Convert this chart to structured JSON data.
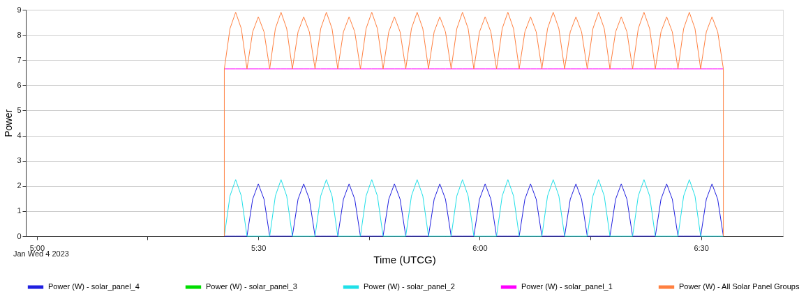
{
  "chart_data": {
    "type": "line",
    "xlabel": "Time (UTCG)",
    "ylabel": "Power",
    "annotations": [
      "Jan Wed 4 2023"
    ],
    "xlim": [
      4.975,
      6.685
    ],
    "ylim": [
      0,
      9
    ],
    "xticks": [
      {
        "value": 5,
        "label": "5:00"
      },
      {
        "value": 5.25,
        "label": null
      },
      {
        "value": 5.5,
        "label": "5:30"
      },
      {
        "value": 5.75,
        "label": null
      },
      {
        "value": 6,
        "label": "6:00"
      },
      {
        "value": 6.25,
        "label": null
      },
      {
        "value": 6.5,
        "label": "6:30"
      }
    ],
    "yticks": [
      0,
      1,
      2,
      3,
      4,
      5,
      6,
      7,
      8,
      9
    ],
    "grid": "y",
    "legend": "bottom",
    "line_style": "solid",
    "marker": "none",
    "x": [
      5.4233,
      5.4233,
      5.4361,
      5.4489,
      5.4617,
      5.4745,
      5.4873,
      5.5001,
      5.513,
      5.5258,
      5.5386,
      5.5514,
      5.5642,
      5.577,
      5.5898,
      5.6026,
      5.6154,
      5.6282,
      5.641,
      5.6538,
      5.6666,
      5.6795,
      5.6923,
      5.7051,
      5.7179,
      5.7307,
      5.7435,
      5.7563,
      5.7691,
      5.7819,
      5.7947,
      5.8075,
      5.8203,
      5.8331,
      5.8459,
      5.8588,
      5.8716,
      5.8844,
      5.8972,
      5.91,
      5.9228,
      5.9356,
      5.9484,
      5.9612,
      5.974,
      5.9868,
      5.9996,
      6.0124,
      6.0253,
      6.0381,
      6.0509,
      6.0637,
      6.0765,
      6.0893,
      6.1021,
      6.1149,
      6.1277,
      6.1405,
      6.1533,
      6.1661,
      6.1789,
      6.1918,
      6.2046,
      6.2174,
      6.2302,
      6.243,
      6.2558,
      6.2686,
      6.2814,
      6.2942,
      6.307,
      6.3198,
      6.3326,
      6.3454,
      6.3582,
      6.3711,
      6.3839,
      6.3967,
      6.4095,
      6.4223,
      6.4351,
      6.4479,
      6.4607,
      6.4735,
      6.4863,
      6.4991,
      6.5119,
      6.5247,
      6.5376,
      6.5504,
      6.5504
    ],
    "series": [
      {
        "name": "Power (W) - solar_panel_4",
        "color": "#2020e0",
        "values": [
          0,
          0,
          0,
          0,
          0,
          0,
          1.47,
          2.08,
          1.47,
          0,
          0,
          0,
          0,
          0,
          1.47,
          2.08,
          1.47,
          0,
          0,
          0,
          0,
          0,
          1.47,
          2.08,
          1.47,
          0,
          0,
          0,
          0,
          0,
          1.47,
          2.08,
          1.47,
          0,
          0,
          0,
          0,
          0,
          1.47,
          2.08,
          1.47,
          0,
          0,
          0,
          0,
          0,
          1.47,
          2.08,
          1.47,
          0,
          0,
          0,
          0,
          0,
          1.47,
          2.08,
          1.47,
          0,
          0,
          0,
          0,
          0,
          1.47,
          2.08,
          1.47,
          0,
          0,
          0,
          0,
          0,
          1.47,
          2.08,
          1.47,
          0,
          0,
          0,
          0,
          0,
          1.47,
          2.08,
          1.47,
          0,
          0,
          0,
          0,
          0,
          1.47,
          2.08,
          1.47,
          0,
          0
        ]
      },
      {
        "name": "Power (W) - solar_panel_3",
        "color": "#00dd00",
        "values": [
          null,
          null,
          null,
          null,
          null,
          null,
          null,
          null,
          null,
          null,
          null,
          null,
          null,
          null,
          null,
          null,
          null,
          null,
          null,
          null,
          null,
          null,
          null,
          null,
          null,
          null,
          null,
          null,
          null,
          null,
          null,
          null,
          null,
          null,
          null,
          null,
          null,
          null,
          null,
          null,
          null,
          null,
          null,
          null,
          null,
          null,
          null,
          null,
          null,
          null,
          null,
          null,
          null,
          null,
          null,
          null,
          null,
          null,
          null,
          null,
          null,
          null,
          null,
          null,
          null,
          null,
          null,
          null,
          null,
          null,
          null,
          null,
          null,
          null,
          null,
          null,
          null,
          null,
          null,
          null,
          null,
          null,
          null,
          null,
          null,
          null,
          null,
          null,
          null,
          null,
          null
        ]
      },
      {
        "name": "Power (W) - solar_panel_2",
        "color": "#20e0e8",
        "values": [
          0,
          0,
          1.6,
          2.25,
          1.6,
          0,
          0,
          0,
          0,
          0,
          1.6,
          2.25,
          1.6,
          0,
          0,
          0,
          0,
          0,
          1.6,
          2.25,
          1.6,
          0,
          0,
          0,
          0,
          0,
          1.6,
          2.25,
          1.6,
          0,
          0,
          0,
          0,
          0,
          1.6,
          2.25,
          1.6,
          0,
          0,
          0,
          0,
          0,
          1.6,
          2.25,
          1.6,
          0,
          0,
          0,
          0,
          0,
          1.6,
          2.25,
          1.6,
          0,
          0,
          0,
          0,
          0,
          1.6,
          2.25,
          1.6,
          0,
          0,
          0,
          0,
          0,
          1.6,
          2.25,
          1.6,
          0,
          0,
          0,
          0,
          0,
          1.6,
          2.25,
          1.6,
          0,
          0,
          0,
          0,
          0,
          1.6,
          2.25,
          1.6,
          0,
          0,
          0,
          0,
          0,
          0
        ]
      },
      {
        "name": "Power (W) - solar_panel_1",
        "color": "#ff00ff",
        "values": [
          null,
          6.65,
          6.65,
          6.65,
          6.65,
          6.65,
          6.65,
          6.65,
          6.65,
          6.65,
          6.65,
          6.65,
          6.65,
          6.65,
          6.65,
          6.65,
          6.65,
          6.65,
          6.65,
          6.65,
          6.65,
          6.65,
          6.65,
          6.65,
          6.65,
          6.65,
          6.65,
          6.65,
          6.65,
          6.65,
          6.65,
          6.65,
          6.65,
          6.65,
          6.65,
          6.65,
          6.65,
          6.65,
          6.65,
          6.65,
          6.65,
          6.65,
          6.65,
          6.65,
          6.65,
          6.65,
          6.65,
          6.65,
          6.65,
          6.65,
          6.65,
          6.65,
          6.65,
          6.65,
          6.65,
          6.65,
          6.65,
          6.65,
          6.65,
          6.65,
          6.65,
          6.65,
          6.65,
          6.65,
          6.65,
          6.65,
          6.65,
          6.65,
          6.65,
          6.65,
          6.65,
          6.65,
          6.65,
          6.65,
          6.65,
          6.65,
          6.65,
          6.65,
          6.65,
          6.65,
          6.65,
          6.65,
          6.65,
          6.65,
          6.65,
          6.65,
          6.65,
          6.65,
          6.65,
          6.65,
          null
        ]
      },
      {
        "name": "Power (W) - All Solar Panel Groups",
        "color": "#ff8040",
        "values": [
          0,
          6.65,
          8.25,
          8.9,
          8.25,
          6.65,
          8.12,
          8.72,
          8.12,
          6.65,
          8.25,
          8.9,
          8.25,
          6.65,
          8.12,
          8.72,
          8.12,
          6.65,
          8.25,
          8.9,
          8.25,
          6.65,
          8.12,
          8.72,
          8.12,
          6.65,
          8.25,
          8.9,
          8.25,
          6.65,
          8.12,
          8.72,
          8.12,
          6.65,
          8.25,
          8.9,
          8.25,
          6.65,
          8.12,
          8.72,
          8.12,
          6.65,
          8.25,
          8.9,
          8.25,
          6.65,
          8.12,
          8.72,
          8.12,
          6.65,
          8.25,
          8.9,
          8.25,
          6.65,
          8.12,
          8.72,
          8.12,
          6.65,
          8.25,
          8.9,
          8.25,
          6.65,
          8.12,
          8.72,
          8.12,
          6.65,
          8.25,
          8.9,
          8.25,
          6.65,
          8.12,
          8.72,
          8.12,
          6.65,
          8.25,
          8.9,
          8.25,
          6.65,
          8.12,
          8.72,
          8.12,
          6.65,
          8.25,
          8.9,
          8.25,
          6.65,
          8.12,
          8.72,
          8.12,
          6.65,
          0
        ]
      }
    ]
  }
}
